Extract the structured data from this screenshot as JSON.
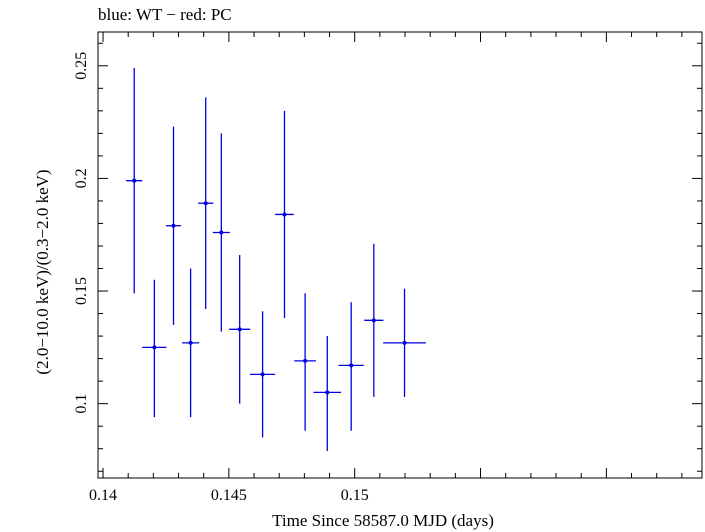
{
  "chart_data": {
    "type": "scatter",
    "title": "blue: WT − red: PC",
    "xlabel": "Time Since 58587.0 MJD (days)",
    "ylabel": "(2.0−10.0 keV)/(0.3−2.0 keV)",
    "xlim": [
      0.1398,
      0.1638
    ],
    "ylim": [
      0.067,
      0.265
    ],
    "x_ticks": [
      0.14,
      0.145,
      0.15
    ],
    "x_tick_labels": [
      "0.14",
      "0.145",
      "0.15"
    ],
    "y_ticks": [
      0.1,
      0.15,
      0.2,
      0.25
    ],
    "y_tick_labels": [
      "0.1",
      "0.15",
      "0.2",
      "0.25"
    ],
    "grid": false,
    "series": [
      {
        "color": "#0000e0",
        "points": [
          {
            "x": 0.14124,
            "y": 0.199,
            "xerr": 0.00032,
            "yerr_lo": 0.05,
            "yerr_hi": 0.05
          },
          {
            "x": 0.14204,
            "y": 0.125,
            "xerr": 0.00048,
            "yerr_lo": 0.031,
            "yerr_hi": 0.03
          },
          {
            "x": 0.1428,
            "y": 0.179,
            "xerr": 0.0003,
            "yerr_lo": 0.044,
            "yerr_hi": 0.044
          },
          {
            "x": 0.14348,
            "y": 0.127,
            "xerr": 0.00034,
            "yerr_lo": 0.033,
            "yerr_hi": 0.033
          },
          {
            "x": 0.14408,
            "y": 0.189,
            "xerr": 0.0003,
            "yerr_lo": 0.047,
            "yerr_hi": 0.047
          },
          {
            "x": 0.1447,
            "y": 0.176,
            "xerr": 0.00034,
            "yerr_lo": 0.044,
            "yerr_hi": 0.044
          },
          {
            "x": 0.14543,
            "y": 0.133,
            "xerr": 0.00042,
            "yerr_lo": 0.033,
            "yerr_hi": 0.033
          },
          {
            "x": 0.14634,
            "y": 0.113,
            "xerr": 0.0005,
            "yerr_lo": 0.028,
            "yerr_hi": 0.028
          },
          {
            "x": 0.14721,
            "y": 0.184,
            "xerr": 0.00037,
            "yerr_lo": 0.046,
            "yerr_hi": 0.046
          },
          {
            "x": 0.14803,
            "y": 0.119,
            "xerr": 0.00043,
            "yerr_lo": 0.031,
            "yerr_hi": 0.03
          },
          {
            "x": 0.14891,
            "y": 0.105,
            "xerr": 0.00055,
            "yerr_lo": 0.026,
            "yerr_hi": 0.025
          },
          {
            "x": 0.14986,
            "y": 0.117,
            "xerr": 0.0005,
            "yerr_lo": 0.029,
            "yerr_hi": 0.028
          },
          {
            "x": 0.15076,
            "y": 0.137,
            "xerr": 0.00038,
            "yerr_lo": 0.034,
            "yerr_hi": 0.034
          },
          {
            "x": 0.15198,
            "y": 0.127,
            "xerr": 0.00085,
            "yerr_lo": 0.024,
            "yerr_hi": 0.024
          }
        ]
      }
    ]
  }
}
